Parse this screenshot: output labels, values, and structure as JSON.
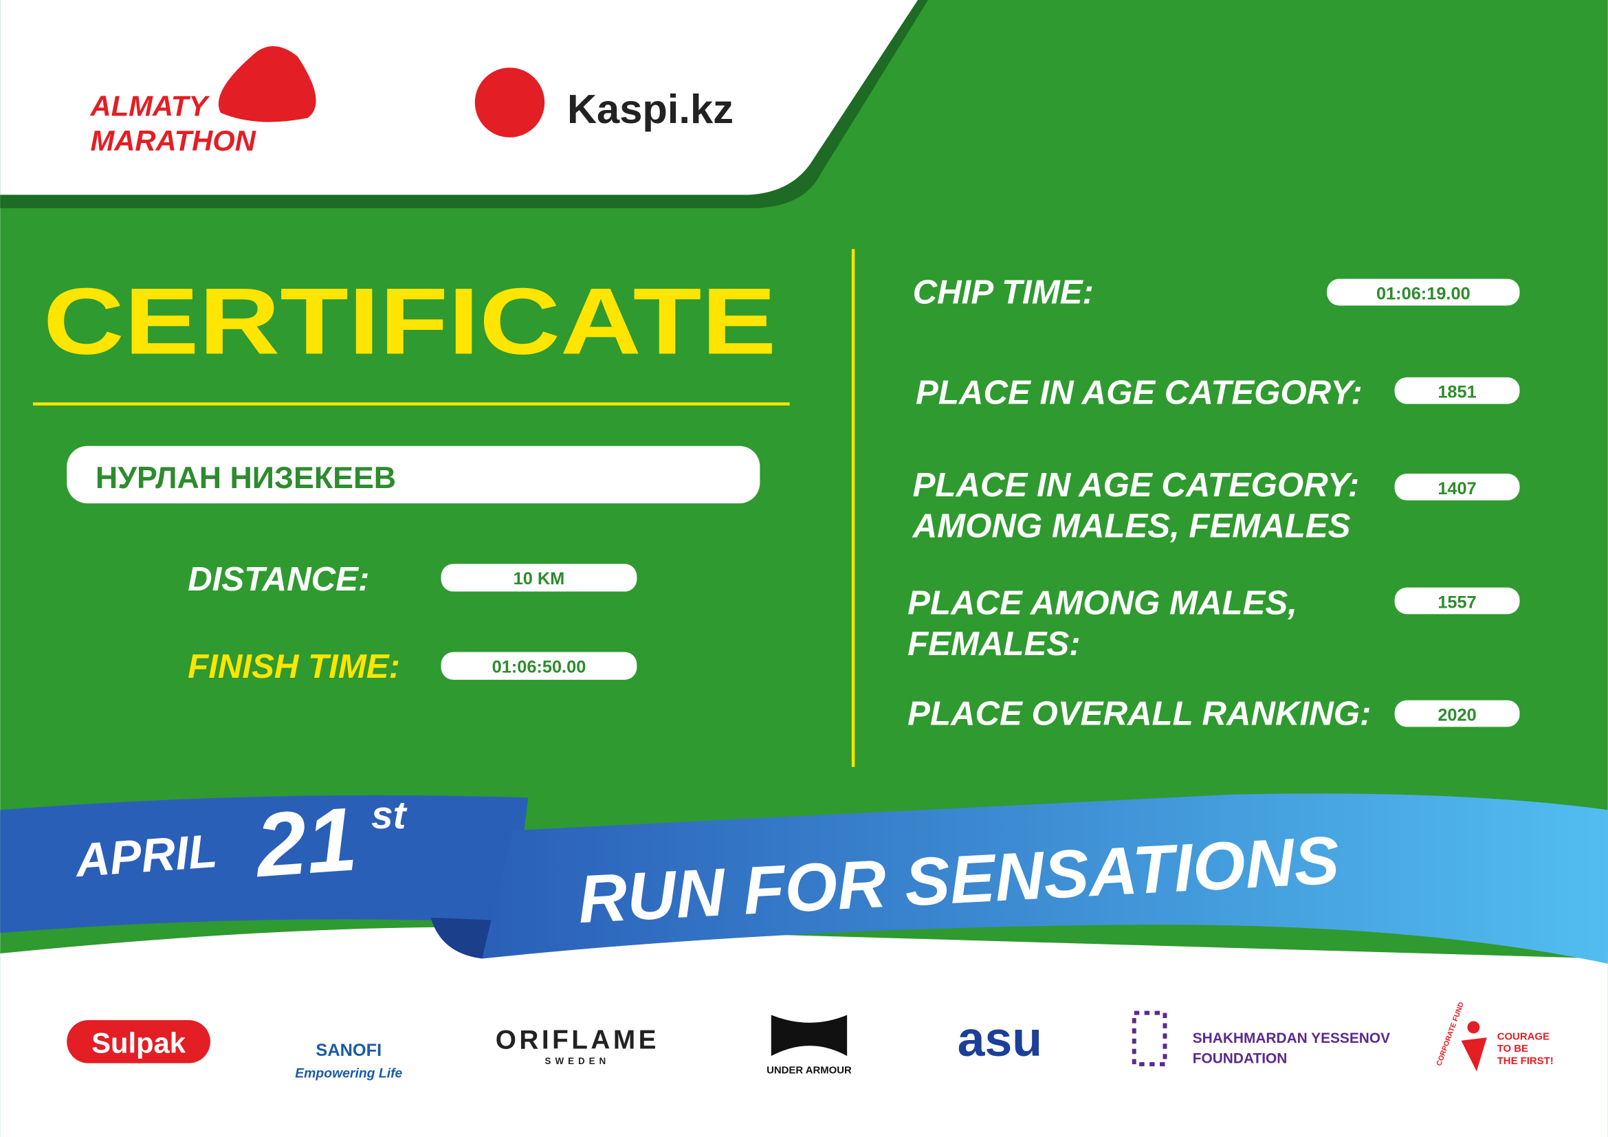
{
  "header": {
    "organizer": [
      "ALMATY",
      "MARATHON"
    ],
    "sponsor": "Kaspi.kz"
  },
  "certificate": {
    "title": "CERTIFICATE",
    "name": "НУРЛАН НИЗЕКЕЕВ",
    "left_fields": [
      {
        "label": [
          "DISTANCE:"
        ],
        "value": "10 KM"
      },
      {
        "label": [
          "FINISH TIME:"
        ],
        "value": "01:06:50.00"
      }
    ],
    "right_fields": [
      {
        "label": [
          "CHIP TIME:"
        ],
        "value": "01:06:19.00"
      },
      {
        "label": [
          "PLACE IN AGE CATEGORY:"
        ],
        "value": "1851"
      },
      {
        "label": [
          "PLACE IN AGE CATEGORY:",
          "AMONG MALES, FEMALES"
        ],
        "value": "1407"
      },
      {
        "label": [
          "PLACE AMONG MALES,",
          "FEMALES:"
        ],
        "value": "1557"
      },
      {
        "label": [
          "PLACE OVERALL RANKING:"
        ],
        "value": "2020"
      }
    ]
  },
  "ribbon": {
    "month": "APRIL",
    "day": "21",
    "suffix": "st",
    "slogan": "RUN FOR SENSATIONS"
  },
  "partners": [
    "Sulpak",
    "SANOFI",
    "Empowering Life",
    "ORIFLAME",
    "SWEDEN",
    "UNDER ARMOUR",
    "asu",
    "SHAKHMARDAN YESSENOV",
    "FOUNDATION",
    "CORPORATE FUND",
    "COURAGE",
    "TO BE",
    "THE FIRST!"
  ]
}
